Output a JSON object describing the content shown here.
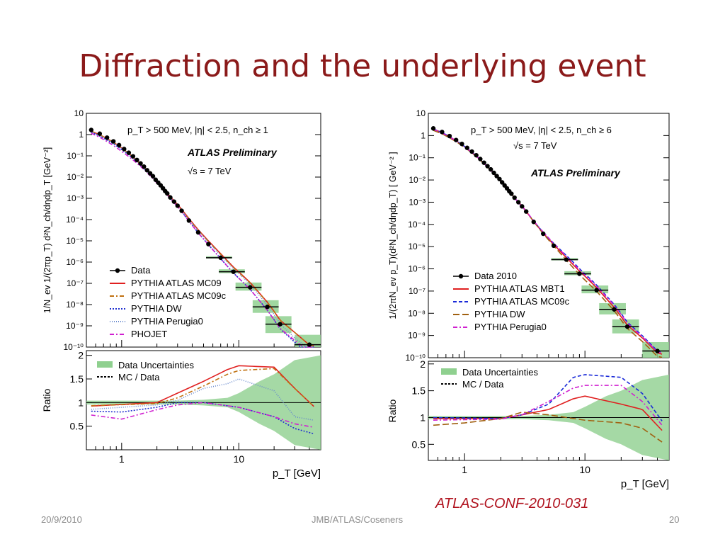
{
  "slide": {
    "title": "Diffraction and the underlying event",
    "reference": "ATLAS-CONF-2010-031",
    "footer_date": "20/9/2010",
    "footer_center": "JMB/ATLAS/Coseners",
    "page_number": "20"
  },
  "chart_data": [
    {
      "type": "line",
      "scale": "log-log",
      "top": {
        "ylabel": "1/N_ev 1/(2πp_T) d²N_ch/dηdp_T [GeV⁻²]",
        "ylim": [
          1e-10,
          10
        ],
        "yticks": [
          "10",
          "1",
          "10⁻¹",
          "10⁻²",
          "10⁻³",
          "10⁻⁴",
          "10⁻⁵",
          "10⁻⁶",
          "10⁻⁷",
          "10⁻⁸",
          "10⁻⁹",
          "10⁻¹⁰"
        ],
        "cuts_label": "p_T > 500 MeV, |η| < 2.5, n_ch ≥ 1",
        "experiment_label": "ATLAS Preliminary",
        "energy_label": "√s = 7 TeV",
        "data": {
          "name": "Data",
          "x": [
            0.55,
            0.65,
            0.75,
            0.85,
            0.95,
            1.05,
            1.15,
            1.25,
            1.35,
            1.45,
            1.55,
            1.65,
            1.75,
            1.85,
            1.95,
            2.05,
            2.15,
            2.25,
            2.35,
            2.45,
            2.6,
            2.8,
            3.0,
            3.25,
            3.75,
            4.5,
            5.5,
            7.0,
            9.0,
            12.5,
            17.5,
            22.5,
            40.0
          ],
          "y": [
            1.65,
            1.1,
            0.72,
            0.48,
            0.32,
            0.21,
            0.14,
            0.095,
            0.064,
            0.044,
            0.031,
            0.021,
            0.015,
            0.011,
            0.0075,
            0.0055,
            0.0041,
            0.003,
            0.0022,
            0.0017,
            0.0011,
            0.0007,
            0.00045,
            0.00026,
            9e-05,
            2.5e-05,
            7e-06,
            1.6e-06,
            3.5e-07,
            6.5e-08,
            7.8e-09,
            1.2e-09,
            1.3e-10
          ]
        },
        "legend": [
          "Data",
          "PYTHIA ATLAS MC09",
          "PYTHIA ATLAS MC09c",
          "PYTHIA DW",
          "PYTHIA Perugia0",
          "PHOJET"
        ],
        "series": [
          {
            "name": "PYTHIA ATLAS MC09",
            "color": "#e02020",
            "dash": "solid",
            "ratio": [
              [
                0.5,
                0.92
              ],
              [
                2,
                1.0
              ],
              [
                3,
                1.2
              ],
              [
                5,
                1.45
              ],
              [
                8,
                1.7
              ],
              [
                10,
                1.78
              ],
              [
                20,
                1.75
              ],
              [
                30,
                1.3
              ],
              [
                50,
                0.78
              ]
            ]
          },
          {
            "name": "PYTHIA ATLAS MC09c",
            "color": "#c07010",
            "dash": "dashdot",
            "ratio": [
              [
                0.5,
                0.93
              ],
              [
                2,
                0.98
              ],
              [
                3,
                1.1
              ],
              [
                5,
                1.35
              ],
              [
                8,
                1.6
              ],
              [
                10,
                1.68
              ],
              [
                20,
                1.72
              ],
              [
                30,
                1.3
              ],
              [
                50,
                0.78
              ]
            ]
          },
          {
            "name": "PYTHIA DW",
            "color": "#2030d0",
            "dash": "dotted",
            "ratio": [
              [
                0.5,
                0.82
              ],
              [
                1,
                0.8
              ],
              [
                2,
                0.9
              ],
              [
                3,
                1.0
              ],
              [
                5,
                1.0
              ],
              [
                10,
                0.9
              ],
              [
                20,
                0.7
              ],
              [
                30,
                0.45
              ],
              [
                50,
                0.3
              ]
            ]
          },
          {
            "name": "PYTHIA Perugia0",
            "color": "#6688cc",
            "dash": "finedot",
            "ratio": [
              [
                0.5,
                0.85
              ],
              [
                2,
                0.95
              ],
              [
                3,
                1.05
              ],
              [
                5,
                1.3
              ],
              [
                8,
                1.4
              ],
              [
                10,
                1.5
              ],
              [
                20,
                1.25
              ],
              [
                30,
                0.7
              ],
              [
                50,
                0.6
              ]
            ]
          },
          {
            "name": "PHOJET",
            "color": "#d020d0",
            "dash": "dashdot",
            "ratio": [
              [
                0.5,
                0.75
              ],
              [
                1,
                0.65
              ],
              [
                2,
                0.85
              ],
              [
                3,
                0.95
              ],
              [
                5,
                1.0
              ],
              [
                10,
                0.9
              ],
              [
                20,
                0.7
              ],
              [
                30,
                0.55
              ],
              [
                50,
                0.45
              ]
            ]
          }
        ]
      },
      "bottom": {
        "ylabel": "Ratio",
        "ylim": [
          0,
          2.1
        ],
        "yticks": [
          "0.5",
          "1",
          "1.5",
          "2"
        ],
        "legend": [
          "Data Uncertainties",
          "MC / Data"
        ],
        "uncertainty_band": [
          [
            0.5,
            0.04
          ],
          [
            3,
            0.04
          ],
          [
            5,
            0.06
          ],
          [
            8,
            0.1
          ],
          [
            10,
            0.2
          ],
          [
            15,
            0.45
          ],
          [
            20,
            0.6
          ],
          [
            30,
            0.9
          ],
          [
            50,
            1.0
          ]
        ]
      },
      "x": {
        "label": "p_T [GeV]",
        "lim": [
          0.5,
          50
        ],
        "ticks": [
          "1",
          "10"
        ]
      }
    },
    {
      "type": "line",
      "scale": "log-log",
      "top": {
        "ylabel": "1/(2πN_ev p_T)(d²N_ch/dηdp_T) [ GeV⁻² ]",
        "ylim": [
          1e-10,
          10
        ],
        "yticks": [
          "10",
          "1",
          "10⁻¹",
          "10⁻²",
          "10⁻³",
          "10⁻⁴",
          "10⁻⁵",
          "10⁻⁶",
          "10⁻⁷",
          "10⁻⁸",
          "10⁻⁹",
          "10⁻¹⁰"
        ],
        "cuts_label": "p_T > 500 MeV, |η| < 2.5, n_ch ≥ 6",
        "experiment_label": "ATLAS Preliminary",
        "energy_label": "√s = 7 TeV",
        "data": {
          "name": "Data 2010",
          "x": [
            0.55,
            0.65,
            0.75,
            0.85,
            0.95,
            1.05,
            1.15,
            1.25,
            1.35,
            1.45,
            1.55,
            1.65,
            1.75,
            1.85,
            1.95,
            2.05,
            2.15,
            2.25,
            2.35,
            2.45,
            2.6,
            2.8,
            3.0,
            3.25,
            3.75,
            4.5,
            5.5,
            7.0,
            9.0,
            12.5,
            17.5,
            22.5,
            40.0
          ],
          "y": [
            2.1,
            1.45,
            0.95,
            0.63,
            0.42,
            0.28,
            0.19,
            0.13,
            0.088,
            0.06,
            0.042,
            0.03,
            0.021,
            0.015,
            0.011,
            0.0078,
            0.0057,
            0.0042,
            0.0031,
            0.0024,
            0.0016,
            0.001,
            0.00065,
            0.00038,
            0.00013,
            3.8e-05,
            1.1e-05,
            2.6e-06,
            6e-07,
            1.1e-07,
            1.5e-08,
            2.5e-09,
            2e-10
          ]
        },
        "legend": [
          "Data 2010",
          "PYTHIA ATLAS MBT1",
          "PYTHIA ATLAS MC09c",
          "PYTHIA DW",
          "PYTHIA Perugia0"
        ],
        "series": [
          {
            "name": "PYTHIA ATLAS MBT1",
            "color": "#e02020",
            "dash": "solid",
            "ratio": [
              [
                0.5,
                0.98
              ],
              [
                2,
                0.98
              ],
              [
                3,
                1.05
              ],
              [
                5,
                1.15
              ],
              [
                8,
                1.35
              ],
              [
                10,
                1.4
              ],
              [
                20,
                1.25
              ],
              [
                30,
                1.15
              ],
              [
                50,
                0.62
              ]
            ]
          },
          {
            "name": "PYTHIA ATLAS MC09c",
            "color": "#1a2ad8",
            "dash": "dashed",
            "ratio": [
              [
                0.5,
                1.0
              ],
              [
                2,
                0.98
              ],
              [
                3,
                1.05
              ],
              [
                5,
                1.25
              ],
              [
                8,
                1.75
              ],
              [
                10,
                1.8
              ],
              [
                20,
                1.75
              ],
              [
                30,
                1.45
              ],
              [
                50,
                0.75
              ]
            ]
          },
          {
            "name": "PYTHIA DW",
            "color": "#a06010",
            "dash": "longdash",
            "ratio": [
              [
                0.5,
                0.85
              ],
              [
                1,
                0.9
              ],
              [
                2,
                0.98
              ],
              [
                3,
                1.1
              ],
              [
                5,
                1.05
              ],
              [
                10,
                0.95
              ],
              [
                20,
                0.9
              ],
              [
                30,
                0.8
              ],
              [
                50,
                0.45
              ]
            ]
          },
          {
            "name": "PYTHIA Perugia0",
            "color": "#d020d0",
            "dash": "dashdot",
            "ratio": [
              [
                0.5,
                0.95
              ],
              [
                2,
                0.97
              ],
              [
                3,
                1.05
              ],
              [
                5,
                1.3
              ],
              [
                8,
                1.55
              ],
              [
                10,
                1.6
              ],
              [
                20,
                1.6
              ],
              [
                30,
                1.3
              ],
              [
                50,
                0.7
              ]
            ]
          }
        ]
      },
      "bottom": {
        "ylabel": "Ratio",
        "ylim": [
          0.2,
          2.05
        ],
        "yticks": [
          "0.5",
          "1",
          "1.5",
          "2"
        ],
        "legend": [
          "Data Uncertainties",
          "MC / Data"
        ],
        "uncertainty_band": [
          [
            0.5,
            0.03
          ],
          [
            3,
            0.03
          ],
          [
            5,
            0.05
          ],
          [
            8,
            0.1
          ],
          [
            10,
            0.2
          ],
          [
            15,
            0.4
          ],
          [
            20,
            0.5
          ],
          [
            30,
            0.7
          ],
          [
            50,
            0.8
          ]
        ]
      },
      "x": {
        "label": "p_T [GeV]",
        "lim": [
          0.5,
          50
        ],
        "ticks": [
          "1",
          "10"
        ]
      }
    }
  ]
}
